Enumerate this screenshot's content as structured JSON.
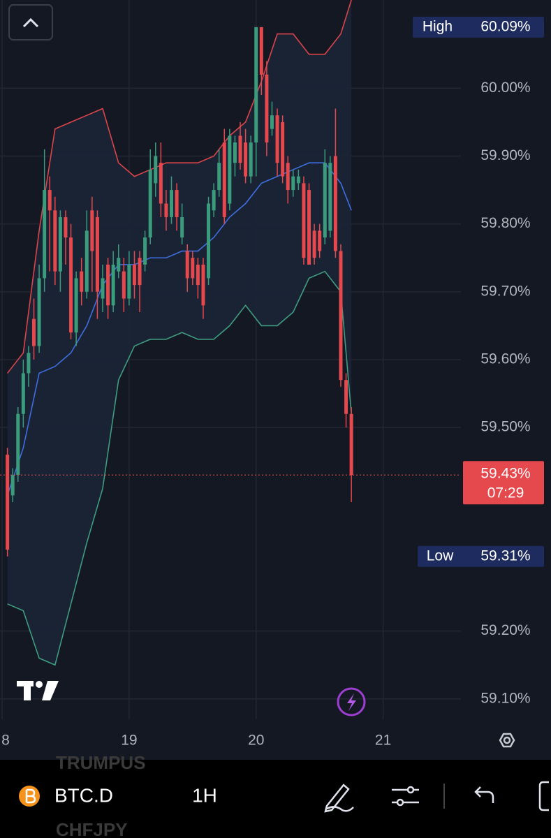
{
  "chart_data": {
    "type": "candlestick",
    "x": [
      1,
      2,
      3,
      4,
      5,
      6,
      7,
      8,
      9,
      10,
      11,
      12,
      13,
      14,
      15,
      16,
      17,
      18,
      19,
      20,
      21,
      22,
      23,
      24,
      25,
      26,
      27,
      28,
      29,
      30,
      31,
      32,
      33,
      34,
      35,
      36,
      37,
      38,
      39,
      40,
      41,
      42,
      43,
      44,
      45,
      46,
      47,
      48,
      49,
      50,
      51,
      52,
      53,
      54,
      55,
      56,
      57,
      58,
      59,
      60,
      61,
      62,
      63,
      64,
      65,
      66
    ],
    "open": [
      59.46,
      59.4,
      59.43,
      59.52,
      59.58,
      59.66,
      59.62,
      59.72,
      59.85,
      59.82,
      59.73,
      59.81,
      59.78,
      59.64,
      59.73,
      59.7,
      59.82,
      59.81,
      59.69,
      59.74,
      59.68,
      59.73,
      59.73,
      59.69,
      59.74,
      59.75,
      59.74,
      59.78,
      59.86,
      59.89,
      59.83,
      59.81,
      59.85,
      59.78,
      59.76,
      59.75,
      59.74,
      59.74,
      59.72,
      59.82,
      59.85,
      59.92,
      59.83,
      59.89,
      59.93,
      59.92,
      59.87,
      59.92,
      60.09,
      60.02,
      59.94,
      59.96,
      59.95,
      59.89,
      59.85,
      59.86,
      59.86,
      59.85,
      59.79,
      59.79,
      59.78,
      59.79,
      59.9,
      59.76,
      59.57,
      59.52
    ],
    "high": [
      59.47,
      59.44,
      59.53,
      59.6,
      59.62,
      59.69,
      59.74,
      59.91,
      59.87,
      59.84,
      59.82,
      59.82,
      59.8,
      59.73,
      59.75,
      59.82,
      59.84,
      59.82,
      59.74,
      59.75,
      59.76,
      59.77,
      59.75,
      59.76,
      59.76,
      59.76,
      59.79,
      59.91,
      59.92,
      59.92,
      59.85,
      59.87,
      59.86,
      59.83,
      59.77,
      59.76,
      59.75,
      59.75,
      59.84,
      59.86,
      59.91,
      59.94,
      59.94,
      59.93,
      59.95,
      59.94,
      59.93,
      60.09,
      60.09,
      60.04,
      59.98,
      59.97,
      59.96,
      59.9,
      59.88,
      59.88,
      59.87,
      59.86,
      59.8,
      59.8,
      59.91,
      59.9,
      59.97,
      59.77,
      59.58,
      59.53
    ],
    "low": [
      59.31,
      59.39,
      59.42,
      59.5,
      59.56,
      59.6,
      59.61,
      59.7,
      59.73,
      59.71,
      59.7,
      59.74,
      59.63,
      59.62,
      59.68,
      59.69,
      59.7,
      59.66,
      59.67,
      59.66,
      59.67,
      59.72,
      59.67,
      59.68,
      59.69,
      59.67,
      59.73,
      59.77,
      59.84,
      59.81,
      59.79,
      59.8,
      59.79,
      59.77,
      59.7,
      59.71,
      59.69,
      59.66,
      59.71,
      59.81,
      59.84,
      59.8,
      59.82,
      59.87,
      59.88,
      59.86,
      59.86,
      59.87,
      59.99,
      59.9,
      59.93,
      59.87,
      59.86,
      59.83,
      59.84,
      59.85,
      59.74,
      59.74,
      59.74,
      59.75,
      59.77,
      59.78,
      59.75,
      59.56,
      59.5,
      59.39
    ],
    "close": [
      59.32,
      59.43,
      59.52,
      59.58,
      59.61,
      59.62,
      59.72,
      59.85,
      59.82,
      59.73,
      59.81,
      59.78,
      59.64,
      59.72,
      59.7,
      59.79,
      59.76,
      59.7,
      59.72,
      59.68,
      59.74,
      59.75,
      59.69,
      59.74,
      59.71,
      59.71,
      59.78,
      59.88,
      59.9,
      59.83,
      59.81,
      59.85,
      59.81,
      59.81,
      59.72,
      59.72,
      59.71,
      59.68,
      59.83,
      59.85,
      59.89,
      59.81,
      59.93,
      59.92,
      59.89,
      59.87,
      59.92,
      60.09,
      60.02,
      59.92,
      59.96,
      59.89,
      59.87,
      59.85,
      59.87,
      59.87,
      59.75,
      59.74,
      59.75,
      59.76,
      59.89,
      59.89,
      59.76,
      59.57,
      59.52,
      59.43
    ],
    "up_color": "#3a9c7c",
    "down_color": "#e5484d",
    "overlay_x": [
      1,
      4,
      7,
      10,
      13,
      16,
      19,
      22,
      25,
      28,
      31,
      34,
      37,
      40,
      43,
      46,
      49,
      52,
      55,
      58,
      61,
      64,
      66
    ],
    "overlays": [
      {
        "color": "#d9454a",
        "values": [
          59.58,
          59.61,
          59.79,
          59.94,
          59.95,
          59.96,
          59.97,
          59.89,
          59.87,
          59.88,
          59.89,
          59.89,
          59.89,
          59.9,
          59.93,
          59.95,
          60.01,
          60.08,
          60.08,
          60.05,
          60.05,
          60.08,
          60.13
        ]
      },
      {
        "color": "#3f6ee0",
        "values": [
          59.4,
          59.47,
          59.58,
          59.59,
          59.61,
          59.65,
          59.71,
          59.74,
          59.74,
          59.75,
          59.75,
          59.76,
          59.76,
          59.78,
          59.81,
          59.83,
          59.86,
          59.87,
          59.88,
          59.89,
          59.89,
          59.86,
          59.82
        ]
      },
      {
        "color": "#3f9c80",
        "values": [
          59.24,
          59.23,
          59.16,
          59.15,
          59.24,
          59.33,
          59.41,
          59.57,
          59.62,
          59.63,
          59.63,
          59.64,
          59.63,
          59.63,
          59.65,
          59.68,
          59.65,
          59.65,
          59.67,
          59.72,
          59.73,
          59.7,
          59.52
        ]
      }
    ],
    "xlim": [
      -0.4,
      86.7
    ],
    "xticks": [
      {
        "value": 0,
        "label": "8"
      },
      {
        "value": 24,
        "label": "19"
      },
      {
        "value": 48,
        "label": "20"
      },
      {
        "value": 72,
        "label": "21"
      }
    ],
    "ylim": [
      59.07,
      60.13
    ],
    "yticks": [
      {
        "value": 59.1,
        "label": "59.10%"
      },
      {
        "value": 59.2,
        "label": "59.20%"
      },
      {
        "value": 59.5,
        "label": "59.50%"
      },
      {
        "value": 59.6,
        "label": "59.60%"
      },
      {
        "value": 59.7,
        "label": "59.70%"
      },
      {
        "value": 59.8,
        "label": "59.80%"
      },
      {
        "value": 59.9,
        "label": "59.90%"
      },
      {
        "value": 60.0,
        "label": "60.00%"
      }
    ],
    "grid": true,
    "high_marker": {
      "label": "High",
      "value": 60.09,
      "value_label": "60.09%"
    },
    "low_marker": {
      "label": "Low",
      "value": 59.31,
      "value_label": "59.31%"
    },
    "last_price": {
      "value": 59.43,
      "value_label": "59.43%",
      "countdown": "07:29"
    }
  },
  "toolbar": {
    "symbol": "BTC.D",
    "interval": "1H",
    "watchlist_above": "TRUMPUS",
    "watchlist_below": "CHFJPY"
  }
}
